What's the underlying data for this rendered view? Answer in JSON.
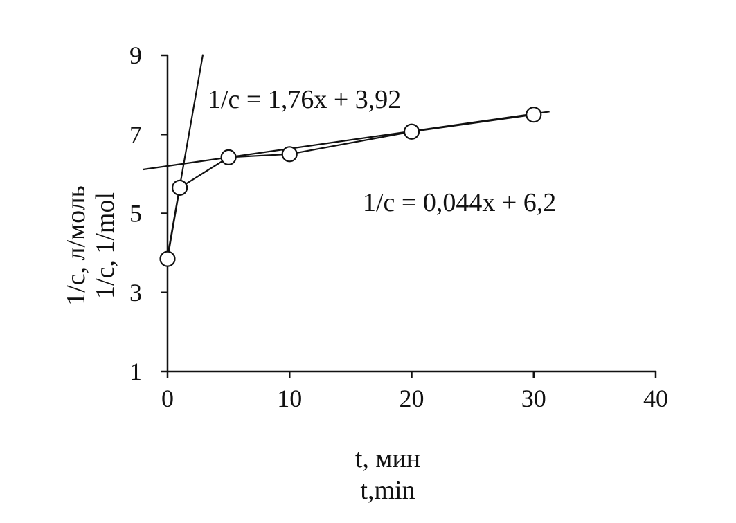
{
  "chart_data": {
    "type": "scatter",
    "title": "",
    "xlabel": [
      "t, мин",
      "t,min"
    ],
    "ylabel": [
      "1/c, л/моль",
      "1/c, 1/mol"
    ],
    "xlim": [
      0,
      40
    ],
    "ylim": [
      1,
      9
    ],
    "x_ticks": [
      0,
      10,
      20,
      30,
      40
    ],
    "y_ticks": [
      1,
      3,
      5,
      7,
      9
    ],
    "x_tick_labels": [
      "0",
      "10",
      "20",
      "30",
      "40"
    ],
    "y_tick_labels": [
      "1",
      "3",
      "5",
      "7",
      "9"
    ],
    "grid": false,
    "series": [
      {
        "points": [
          {
            "x": 0,
            "y": 3.85
          },
          {
            "x": 1,
            "y": 5.65
          },
          {
            "x": 5,
            "y": 6.42
          },
          {
            "x": 10,
            "y": 6.5
          },
          {
            "x": 20,
            "y": 7.07
          },
          {
            "x": 30,
            "y": 7.5
          }
        ]
      }
    ],
    "fit_lines": [
      {
        "label": "1/c = 1,76x + 3,92",
        "slope": 1.76,
        "intercept": 3.92,
        "x_range": [
          0,
          2.9
        ]
      },
      {
        "label": "1/c = 0,044x + 6,2",
        "slope": 0.044,
        "intercept": 6.2,
        "x_range": [
          -2,
          31.3
        ]
      }
    ]
  }
}
